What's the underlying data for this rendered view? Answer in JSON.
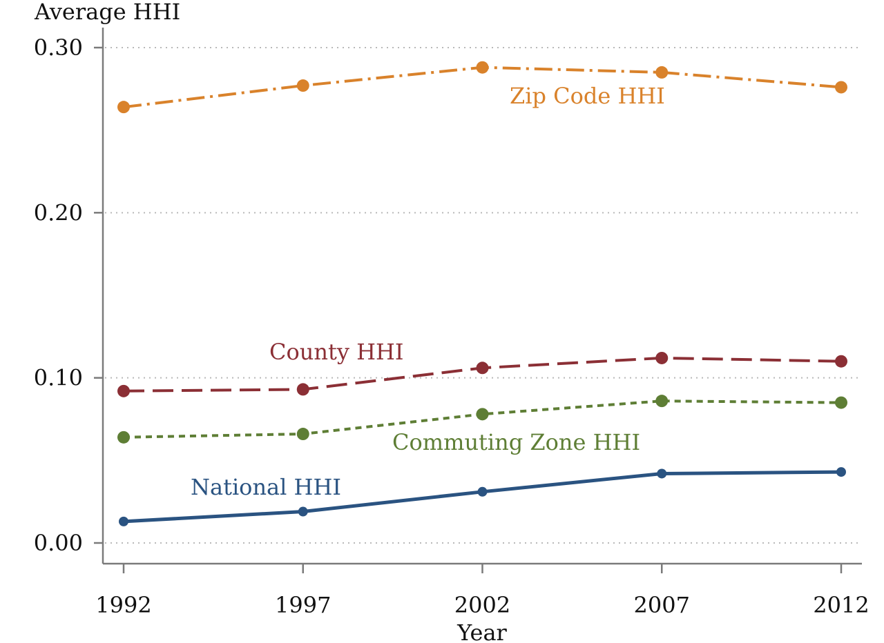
{
  "chart_data": {
    "type": "line",
    "title": "",
    "ylabel": "Average HHI",
    "xlabel": "Year",
    "x": [
      1992,
      1997,
      2002,
      2007,
      2012
    ],
    "x_tick_labels": [
      "1992",
      "1997",
      "2002",
      "2007",
      "2012"
    ],
    "ylim": [
      0,
      0.3
    ],
    "y_ticks": [
      0,
      0.1,
      0.2,
      0.3
    ],
    "y_tick_labels": [
      "0.00",
      "0.10",
      "0.20",
      "0.30"
    ],
    "grid": "horizontal dotted",
    "legend": "inline labels",
    "series": [
      {
        "key": "zip",
        "name": "Zip Code HHI",
        "values": [
          0.264,
          0.277,
          0.288,
          0.285,
          0.276
        ],
        "color": "#d9822b",
        "style": "dash-dot"
      },
      {
        "key": "county",
        "name": "County HHI",
        "values": [
          0.092,
          0.093,
          0.106,
          0.112,
          0.11
        ],
        "color": "#8b2f35",
        "style": "long-dash"
      },
      {
        "key": "cz",
        "name": "Commuting Zone HHI",
        "values": [
          0.064,
          0.066,
          0.078,
          0.086,
          0.085
        ],
        "color": "#5e7e35",
        "style": "short-dash"
      },
      {
        "key": "national",
        "name": "National HHI",
        "values": [
          0.013,
          0.019,
          0.031,
          0.042,
          0.043
        ],
        "color": "#2a5381",
        "style": "solid"
      }
    ]
  }
}
